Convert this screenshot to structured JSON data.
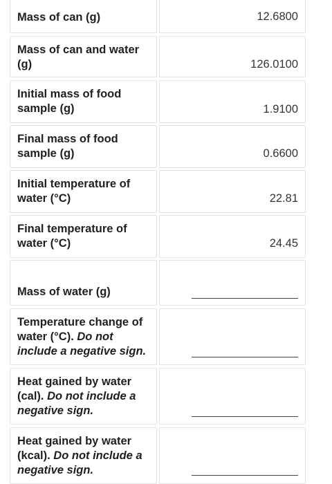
{
  "rows": [
    {
      "label": "Mass of can (g)",
      "value": "12.6800"
    },
    {
      "label": "Mass of can and water (g)",
      "value": "126.0100"
    },
    {
      "label": "Initial mass of food sample (g)",
      "value": "1.9100"
    },
    {
      "label": "Final mass of food sample (g)",
      "value": "0.6600"
    },
    {
      "label": "Initial temperature of water (°C)",
      "value": "22.81"
    },
    {
      "label": "Final temperature of water (°C)",
      "value": "24.45"
    },
    {
      "label": "Mass of water (g)",
      "value": ""
    },
    {
      "label": "Temperature change of water (°C). ",
      "note": "Do not include a negative sign.",
      "value": ""
    },
    {
      "label": "Heat gained by water (cal). ",
      "note": "Do not include a negative sign.",
      "value": ""
    },
    {
      "label": "Heat gained by water (kcal). ",
      "note": "Do not include a negative sign.",
      "value": ""
    }
  ]
}
